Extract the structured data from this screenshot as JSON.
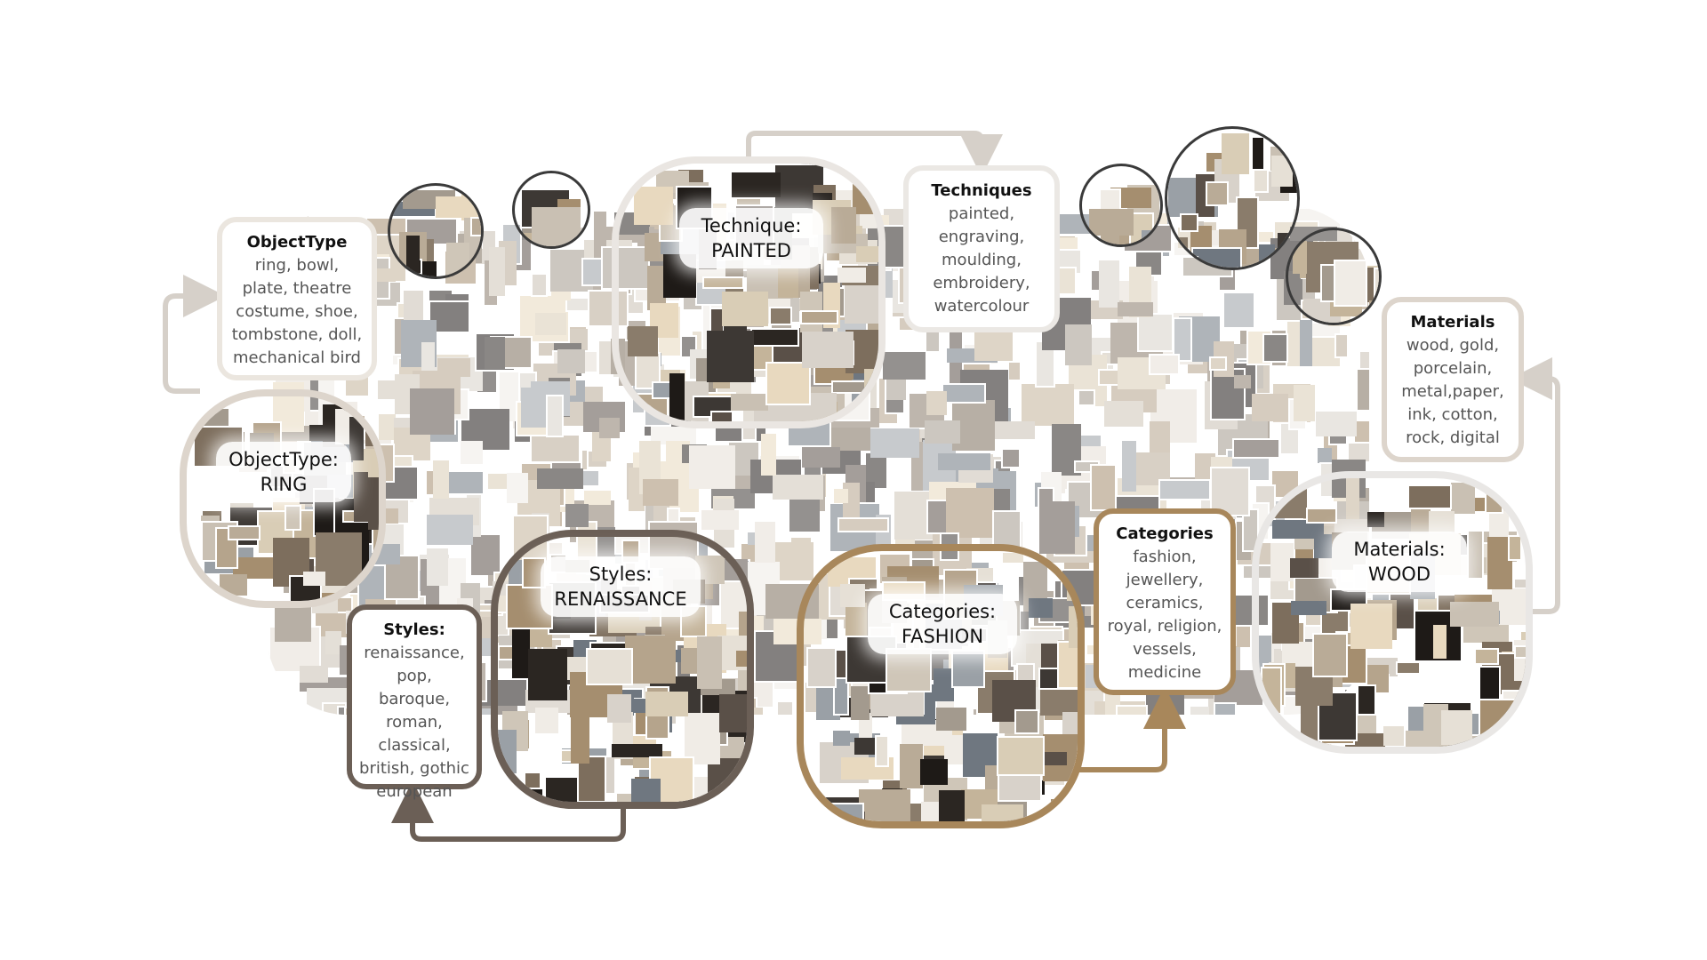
{
  "clusters": {
    "ring": {
      "heading": "ObjectType:",
      "value": "RING",
      "color": "#ddd5cc"
    },
    "painted": {
      "heading": "Technique:",
      "value": "PAINTED",
      "color": "#eae6e2"
    },
    "renaissance": {
      "heading": "Styles:",
      "value": "RENAISSANCE",
      "color": "#6b5f56"
    },
    "fashion": {
      "heading": "Categories:",
      "value": "FASHION",
      "color": "#a8875b"
    },
    "wood": {
      "heading": "Materials:",
      "value": "WOOD",
      "color": "#e9e7e5"
    }
  },
  "boxes": {
    "objecttype": {
      "title": "ObjectType",
      "list": "ring, bowl,\nplate, theatre\ncostume, shoe,\ntombstone, doll,\nmechanical bird",
      "color": "#ebe6df"
    },
    "techniques": {
      "title": "Techniques",
      "list": "painted,\nengraving,\nmoulding,\nembroidery,\nwatercolour",
      "color": "#ebe8e4"
    },
    "styles": {
      "title": "Styles:",
      "list": "renaissance,\npop, baroque,\nroman,\nclassical,\nbritish, gothic\neuropean",
      "color": "#6b5f56"
    },
    "categories": {
      "title": "Categories",
      "list": "fashion,\njewellery,\nceramics,\nroyal, religion,\nvessels,\nmedicine",
      "color": "#a8875b"
    },
    "materials": {
      "title": "Materials",
      "list": "wood, gold,\nporcelain,\nmetal,paper,\nink, cotton,\nrock, digital",
      "color": "#ddd5cc"
    }
  },
  "arrow_colors": {
    "light": "#d6d0c9",
    "dark": "#6b5f56",
    "tan": "#a8875b"
  },
  "palette": [
    "#cfc6b8",
    "#b9ab97",
    "#8a7c6b",
    "#e6e0d6",
    "#5a5048",
    "#2b2622",
    "#d9cdb6",
    "#a39a8e",
    "#f0ece6",
    "#7d6e5d",
    "#c4b49a",
    "#9aa0a6",
    "#3d3834",
    "#e8d9bf",
    "#b5a48c",
    "#6f7780",
    "#d8d2ca",
    "#1e1a17",
    "#c9c0b3",
    "#a58e6f"
  ]
}
